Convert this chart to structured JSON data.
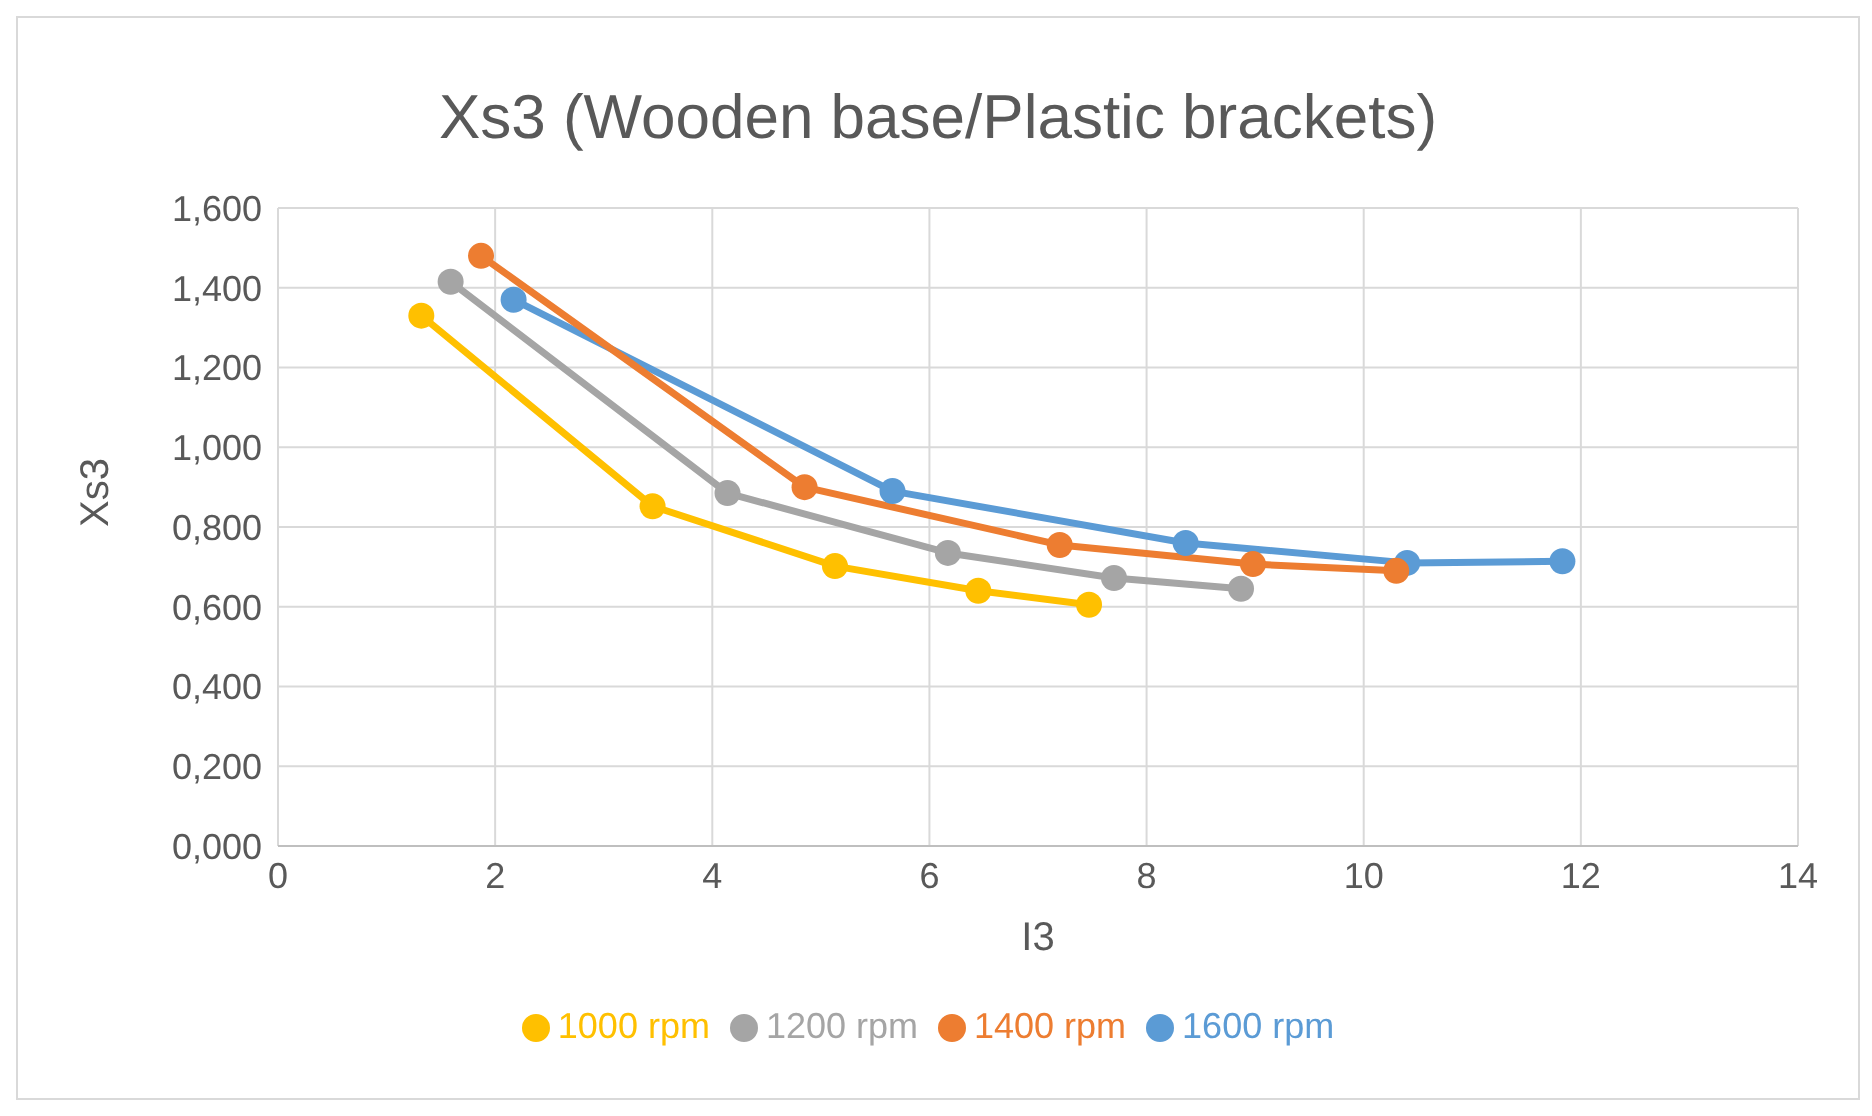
{
  "chart_data": {
    "type": "line",
    "title": "Xs3 (Wooden base/Plastic brackets)",
    "xlabel": "I3",
    "ylabel": "Xs3",
    "xlim": [
      0,
      14
    ],
    "xticks": [
      0,
      2,
      4,
      6,
      8,
      10,
      12,
      14
    ],
    "ylim": [
      0,
      1.6
    ],
    "yticks": [
      {
        "value": 0,
        "label": "0,000"
      },
      {
        "value": 0.2,
        "label": "0,200"
      },
      {
        "value": 0.4,
        "label": "0,400"
      },
      {
        "value": 0.6,
        "label": "0,600"
      },
      {
        "value": 0.8,
        "label": "0,800"
      },
      {
        "value": 1.0,
        "label": "1,000"
      },
      {
        "value": 1.2,
        "label": "1,200"
      },
      {
        "value": 1.4,
        "label": "1,400"
      },
      {
        "value": 1.6,
        "label": "1,600"
      }
    ],
    "grid": true,
    "legend": "bottom",
    "marker": "circle",
    "line_style": "solid",
    "series": [
      {
        "name": "1600 rpm",
        "color": "#5b9bd5",
        "x": [
          2.17,
          5.66,
          8.36,
          10.4,
          11.83
        ],
        "values": [
          1.37,
          0.89,
          0.76,
          0.71,
          0.714
        ]
      },
      {
        "name": "1400 rpm",
        "color": "#ed7d31",
        "x": [
          1.87,
          4.85,
          7.2,
          8.98,
          10.3
        ],
        "values": [
          1.48,
          0.9,
          0.755,
          0.707,
          0.69
        ]
      },
      {
        "name": "1200 rpm",
        "color": "#a5a5a5",
        "x": [
          1.59,
          4.14,
          6.17,
          7.7,
          8.87
        ],
        "values": [
          1.415,
          0.885,
          0.735,
          0.672,
          0.645
        ]
      },
      {
        "name": "1000 rpm",
        "color": "#ffc000",
        "x": [
          1.32,
          3.45,
          5.13,
          6.45,
          7.47
        ],
        "values": [
          1.33,
          0.852,
          0.702,
          0.64,
          0.605
        ]
      }
    ]
  }
}
